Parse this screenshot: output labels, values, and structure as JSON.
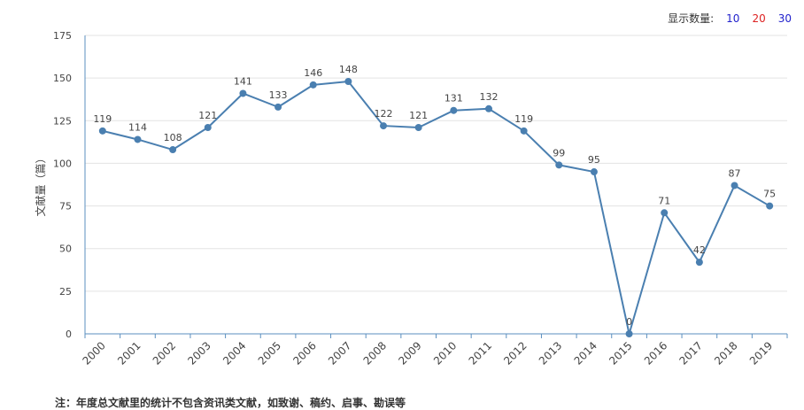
{
  "display_count": {
    "label": "显示数量:",
    "options": [
      {
        "label": "10",
        "color": "#2222cc"
      },
      {
        "label": "20",
        "color": "#dd2222"
      },
      {
        "label": "30",
        "color": "#2222cc"
      }
    ]
  },
  "note": "注：年度总文献里的统计不包含资讯类文献，如致谢、稿约、启事、勘误等",
  "chart_data": {
    "type": "line",
    "title": "",
    "xlabel": "",
    "ylabel": "文献量（篇）",
    "ylim": [
      0,
      175
    ],
    "yticks": [
      0,
      25,
      50,
      75,
      100,
      125,
      150,
      175
    ],
    "grid": true,
    "categories": [
      "2000",
      "2001",
      "2002",
      "2003",
      "2004",
      "2005",
      "2006",
      "2007",
      "2008",
      "2009",
      "2010",
      "2011",
      "2012",
      "2013",
      "2014",
      "2015",
      "2016",
      "2017",
      "2018",
      "2019"
    ],
    "series": [
      {
        "values": [
          119,
          114,
          108,
          121,
          141,
          133,
          146,
          148,
          122,
          121,
          131,
          132,
          119,
          99,
          95,
          0,
          71,
          42,
          87,
          75
        ],
        "color": "#4a7fb0"
      }
    ]
  }
}
